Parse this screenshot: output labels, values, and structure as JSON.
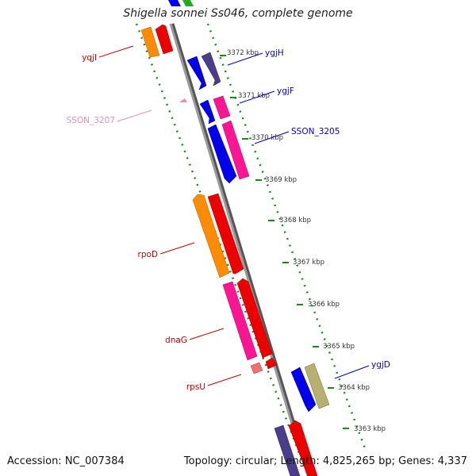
{
  "title": "Shigella sonnei Ss046, complete genome",
  "footer": {
    "accession": "Accession: NC_007384",
    "topology": "Topology: circular; Length: 4,825,265 bp; Genes: 4,337"
  },
  "ticks": [
    {
      "label": "3372 kbp"
    },
    {
      "label": "3371 kbp"
    },
    {
      "label": "3370 kbp"
    },
    {
      "label": "3369 kbp"
    },
    {
      "label": "3368 kbp"
    },
    {
      "label": "3367 kbp"
    },
    {
      "label": "3366 kbp"
    },
    {
      "label": "3365 kbp"
    },
    {
      "label": "3364 kbp"
    },
    {
      "label": "3363 kbp"
    }
  ],
  "gene_labels": [
    {
      "name": "yqjI",
      "color": "#cc0000"
    },
    {
      "name": "SSON_3207",
      "color": "#f08cb0"
    },
    {
      "name": "rpoD",
      "color": "#cc0000"
    },
    {
      "name": "dnaG",
      "color": "#cc0000"
    },
    {
      "name": "rpsU",
      "color": "#cc0000"
    },
    {
      "name": "ygjH",
      "color": "#0000cc"
    },
    {
      "name": "ygjF",
      "color": "#0000cc"
    },
    {
      "name": "SSON_3205",
      "color": "#0000cc"
    },
    {
      "name": "ygjD",
      "color": "#0000cc"
    }
  ],
  "colors": {
    "backbone": "#8c8c8c",
    "dots": "#1a8a1a",
    "orange": "#ff8c00",
    "red": "#ee0000",
    "blue": "#0000ee",
    "navy": "#4b3c8c",
    "magenta": "#ff1493",
    "khaki": "#b8b070",
    "pink": "#f08cb0",
    "salmon": "#f07070",
    "green": "#22aa22"
  }
}
